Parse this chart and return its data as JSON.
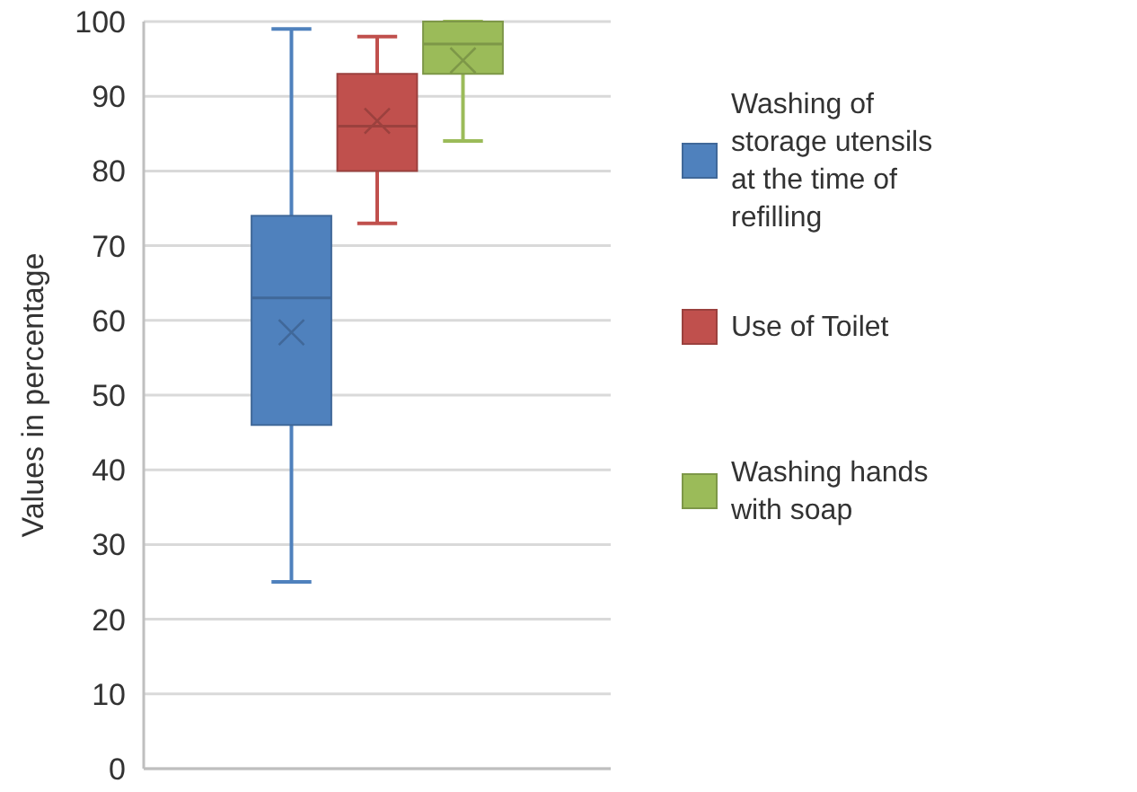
{
  "chart_data": {
    "type": "box",
    "ylabel": "Values in percentage",
    "categories": [
      null
    ],
    "ylim": [
      0,
      100
    ],
    "yticks": [
      0,
      10,
      20,
      30,
      40,
      50,
      60,
      70,
      80,
      90,
      100
    ],
    "grid": "y",
    "legend": "right",
    "tick_labels": "y",
    "series": [
      {
        "name": "Washing of storage utensils at the time of refilling",
        "color": "#4f81bd",
        "boxes": [
          {
            "low": 25,
            "q1": 46,
            "median": 63,
            "q3": 74,
            "high": 99,
            "mean": 58.4
          }
        ]
      },
      {
        "name": "Use of Toilet",
        "color": "#c0504d",
        "boxes": [
          {
            "low": 73,
            "q1": 80,
            "median": 86,
            "q3": 93,
            "high": 98,
            "mean": 86.7
          }
        ]
      },
      {
        "name": "Washing hands with soap",
        "color": "#9bbb59",
        "boxes": [
          {
            "low": 84,
            "q1": 93,
            "median": 97,
            "q3": 100,
            "high": 100,
            "mean": 94.8
          }
        ]
      }
    ]
  }
}
